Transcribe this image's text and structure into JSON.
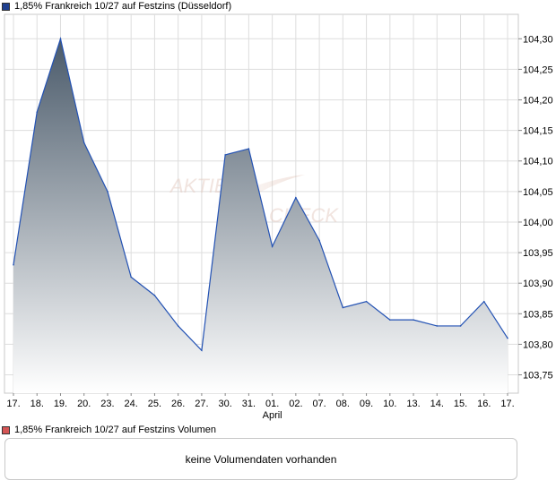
{
  "legend": {
    "price_title": "1,85% Frankreich 10/27 auf Festzins (Düsseldorf)",
    "price_color": "#1f3f8f",
    "volume_title": "1,85% Frankreich 10/27 auf Festzins Volumen",
    "volume_color": "#d55555"
  },
  "volume": {
    "message": "keine Volumendaten vorhanden"
  },
  "watermark": {
    "left": "AKTIEN",
    "right": "CHECK"
  },
  "colors": {
    "line": "#2352b4",
    "fill_top": "#4a5a6a",
    "fill_bottom": "#ffffff",
    "grid": "#dddddd",
    "border": "#c8c8c8"
  },
  "chart_data": {
    "type": "area",
    "title": "1,85% Frankreich 10/27 auf Festzins (Düsseldorf)",
    "xlabel": "",
    "ylabel": "",
    "categories": [
      "17.",
      "18.",
      "19.",
      "20.",
      "23.",
      "24.",
      "25.",
      "26.",
      "27.",
      "30.",
      "31.",
      "01.",
      "02.",
      "07.",
      "08.",
      "09.",
      "10.",
      "13.",
      "14.",
      "15.",
      "16.",
      "17."
    ],
    "month_labels": [
      {
        "index": 11,
        "label": "April"
      }
    ],
    "values": [
      103.93,
      104.18,
      104.3,
      104.13,
      104.05,
      103.91,
      103.88,
      103.83,
      103.79,
      104.11,
      104.12,
      103.96,
      104.04,
      103.97,
      103.86,
      103.87,
      103.84,
      103.84,
      103.83,
      103.83,
      103.87,
      103.81
    ],
    "ylim": [
      103.72,
      104.34
    ],
    "yticks": [
      103.75,
      103.8,
      103.85,
      103.9,
      103.95,
      104.0,
      104.05,
      104.1,
      104.15,
      104.2,
      104.25,
      104.3
    ],
    "ytick_labels": [
      "103,75",
      "103,80",
      "103,85",
      "103,90",
      "103,95",
      "104,00",
      "104,05",
      "104,10",
      "104,15",
      "104,20",
      "104,25",
      "104,30"
    ],
    "grid": true,
    "y_axis_side": "right"
  }
}
